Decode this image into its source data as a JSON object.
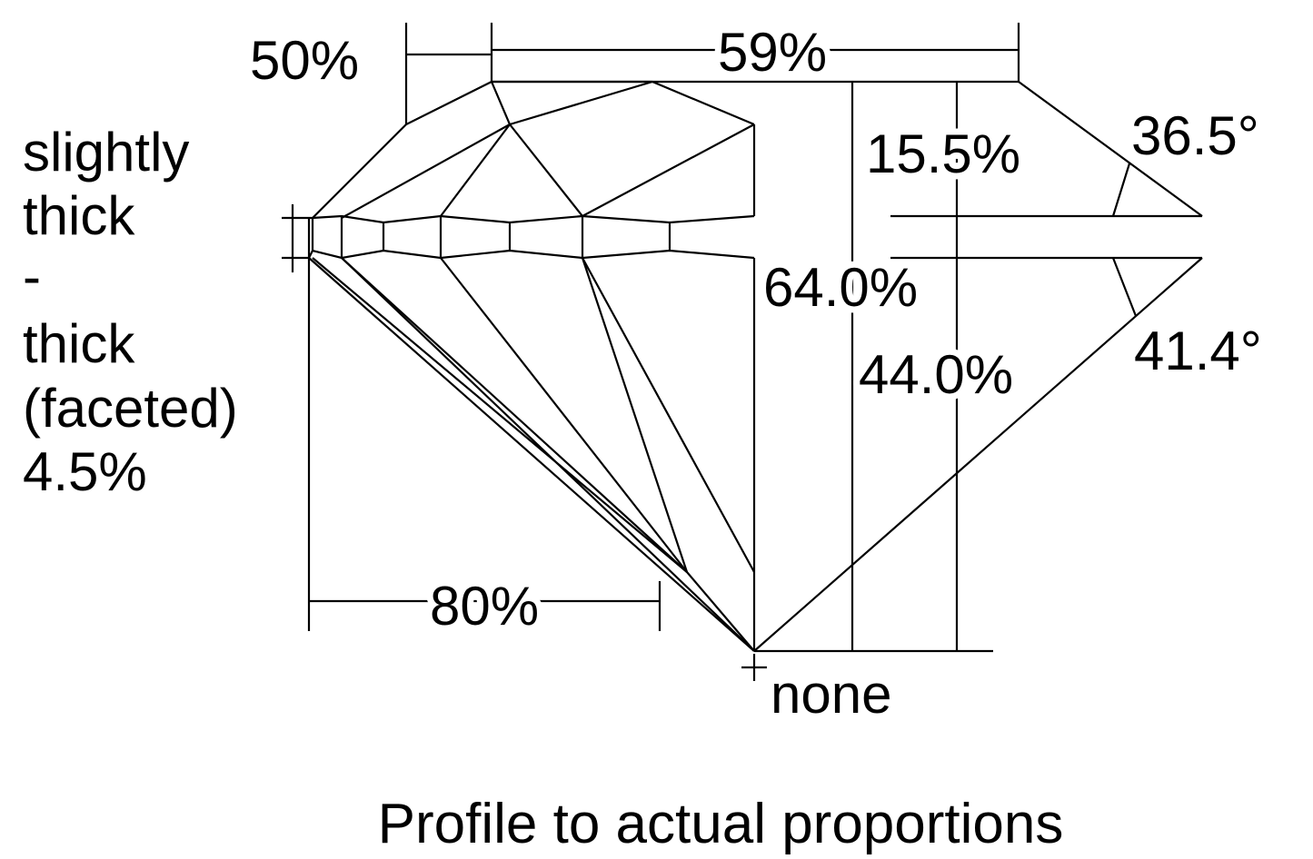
{
  "labels": {
    "table_percent": "59%",
    "crown_break_percent": "50%",
    "crown_height": "15.5%",
    "crown_angle": "36.5°",
    "total_depth": "64.0%",
    "pavilion_depth": "44.0%",
    "pavilion_angle": "41.4°",
    "lower_half_percent": "80%",
    "culet": "none",
    "girdle_lines": [
      "slightly",
      "thick",
      "-",
      "thick",
      "(faceted)",
      "4.5%"
    ]
  },
  "title": "Profile to actual proportions",
  "colors": {
    "line": "#000000",
    "background": "#ffffff"
  }
}
